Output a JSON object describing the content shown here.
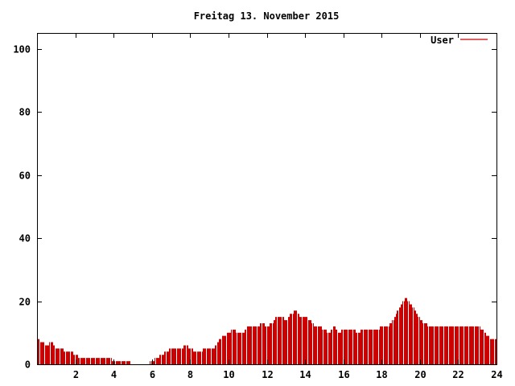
{
  "chart_data": {
    "type": "bar",
    "title": "Freitag 13. November 2015",
    "xlabel": "",
    "ylabel": "",
    "xlim": [
      0,
      24
    ],
    "ylim": [
      0,
      105
    ],
    "x_ticks": [
      2,
      4,
      6,
      8,
      10,
      12,
      14,
      16,
      18,
      20,
      22,
      24
    ],
    "y_ticks": [
      0,
      20,
      40,
      60,
      80,
      100
    ],
    "grid": false,
    "legend_position": "top-right",
    "series": [
      {
        "name": "User",
        "color": "#cc0000",
        "points": [
          [
            0.0,
            8
          ],
          [
            0.25,
            7
          ],
          [
            0.5,
            6
          ],
          [
            0.75,
            7
          ],
          [
            1.0,
            5
          ],
          [
            1.25,
            5
          ],
          [
            1.5,
            4
          ],
          [
            1.75,
            4
          ],
          [
            2.0,
            3
          ],
          [
            2.25,
            2
          ],
          [
            2.5,
            2
          ],
          [
            2.75,
            2
          ],
          [
            3.0,
            2
          ],
          [
            3.25,
            2
          ],
          [
            3.5,
            2
          ],
          [
            3.75,
            2
          ],
          [
            4.0,
            1
          ],
          [
            4.25,
            1
          ],
          [
            4.5,
            1
          ],
          [
            4.75,
            1
          ],
          [
            5.0,
            0
          ],
          [
            5.25,
            0
          ],
          [
            5.5,
            0
          ],
          [
            5.75,
            0
          ],
          [
            6.0,
            1
          ],
          [
            6.25,
            2
          ],
          [
            6.5,
            3
          ],
          [
            6.75,
            4
          ],
          [
            7.0,
            5
          ],
          [
            7.25,
            5
          ],
          [
            7.5,
            5
          ],
          [
            7.75,
            6
          ],
          [
            8.0,
            5
          ],
          [
            8.25,
            4
          ],
          [
            8.5,
            4
          ],
          [
            8.75,
            5
          ],
          [
            9.0,
            5
          ],
          [
            9.25,
            5
          ],
          [
            9.5,
            8
          ],
          [
            9.75,
            9
          ],
          [
            10.0,
            10
          ],
          [
            10.25,
            11
          ],
          [
            10.5,
            10
          ],
          [
            10.75,
            10
          ],
          [
            11.0,
            12
          ],
          [
            11.25,
            12
          ],
          [
            11.5,
            12
          ],
          [
            11.75,
            13
          ],
          [
            12.0,
            12
          ],
          [
            12.25,
            13
          ],
          [
            12.5,
            15
          ],
          [
            12.75,
            15
          ],
          [
            13.0,
            14
          ],
          [
            13.25,
            16
          ],
          [
            13.5,
            17
          ],
          [
            13.75,
            15
          ],
          [
            14.0,
            15
          ],
          [
            14.25,
            14
          ],
          [
            14.5,
            12
          ],
          [
            14.75,
            12
          ],
          [
            15.0,
            11
          ],
          [
            15.25,
            10
          ],
          [
            15.5,
            12
          ],
          [
            15.75,
            10
          ],
          [
            16.0,
            11
          ],
          [
            16.25,
            11
          ],
          [
            16.5,
            11
          ],
          [
            16.75,
            10
          ],
          [
            17.0,
            11
          ],
          [
            17.25,
            11
          ],
          [
            17.5,
            11
          ],
          [
            17.75,
            11
          ],
          [
            18.0,
            12
          ],
          [
            18.25,
            12
          ],
          [
            18.5,
            13
          ],
          [
            18.75,
            16
          ],
          [
            19.0,
            19
          ],
          [
            19.25,
            21
          ],
          [
            19.5,
            19
          ],
          [
            19.75,
            17
          ],
          [
            20.0,
            14
          ],
          [
            20.25,
            13
          ],
          [
            20.5,
            12
          ],
          [
            20.75,
            12
          ],
          [
            21.0,
            12
          ],
          [
            21.25,
            12
          ],
          [
            21.5,
            12
          ],
          [
            21.75,
            12
          ],
          [
            22.0,
            12
          ],
          [
            22.25,
            12
          ],
          [
            22.5,
            12
          ],
          [
            22.75,
            12
          ],
          [
            23.0,
            12
          ],
          [
            23.25,
            11
          ],
          [
            23.5,
            9
          ],
          [
            23.75,
            8
          ]
        ]
      }
    ]
  }
}
